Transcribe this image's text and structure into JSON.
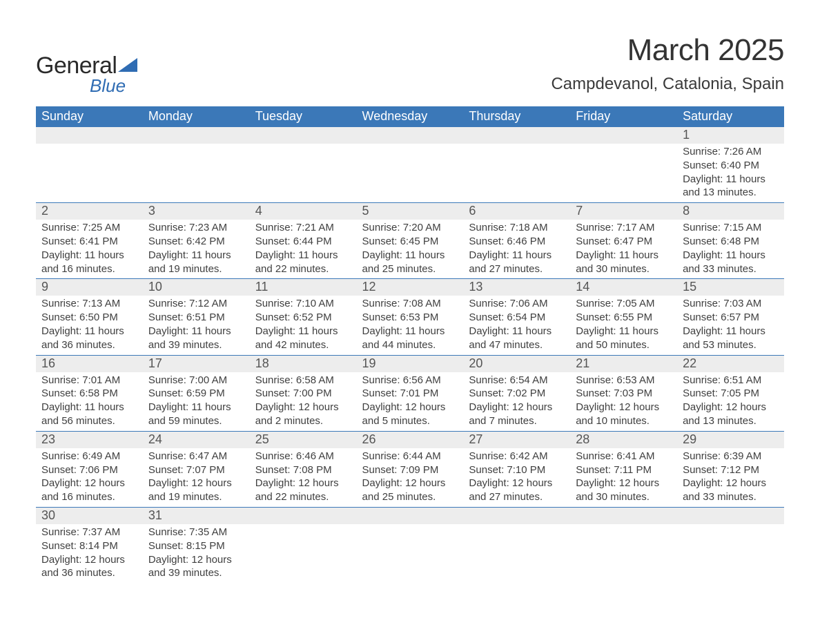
{
  "logo": {
    "general": "General",
    "blue": "Blue",
    "triangle_color": "#2f6cb3"
  },
  "title": "March 2025",
  "location": "Campdevanol, Catalonia, Spain",
  "colors": {
    "header_bg": "#3b78b8",
    "header_text": "#ffffff",
    "daynum_bg": "#ededed",
    "row_border": "#3b78b8",
    "body_text": "#3f3f3f"
  },
  "typography": {
    "title_fontsize": 44,
    "location_fontsize": 24,
    "header_fontsize": 18,
    "daynum_fontsize": 18,
    "body_fontsize": 15
  },
  "day_headers": [
    "Sunday",
    "Monday",
    "Tuesday",
    "Wednesday",
    "Thursday",
    "Friday",
    "Saturday"
  ],
  "weeks": [
    [
      null,
      null,
      null,
      null,
      null,
      null,
      {
        "n": "1",
        "sr": "Sunrise: 7:26 AM",
        "ss": "Sunset: 6:40 PM",
        "d1": "Daylight: 11 hours",
        "d2": "and 13 minutes."
      }
    ],
    [
      {
        "n": "2",
        "sr": "Sunrise: 7:25 AM",
        "ss": "Sunset: 6:41 PM",
        "d1": "Daylight: 11 hours",
        "d2": "and 16 minutes."
      },
      {
        "n": "3",
        "sr": "Sunrise: 7:23 AM",
        "ss": "Sunset: 6:42 PM",
        "d1": "Daylight: 11 hours",
        "d2": "and 19 minutes."
      },
      {
        "n": "4",
        "sr": "Sunrise: 7:21 AM",
        "ss": "Sunset: 6:44 PM",
        "d1": "Daylight: 11 hours",
        "d2": "and 22 minutes."
      },
      {
        "n": "5",
        "sr": "Sunrise: 7:20 AM",
        "ss": "Sunset: 6:45 PM",
        "d1": "Daylight: 11 hours",
        "d2": "and 25 minutes."
      },
      {
        "n": "6",
        "sr": "Sunrise: 7:18 AM",
        "ss": "Sunset: 6:46 PM",
        "d1": "Daylight: 11 hours",
        "d2": "and 27 minutes."
      },
      {
        "n": "7",
        "sr": "Sunrise: 7:17 AM",
        "ss": "Sunset: 6:47 PM",
        "d1": "Daylight: 11 hours",
        "d2": "and 30 minutes."
      },
      {
        "n": "8",
        "sr": "Sunrise: 7:15 AM",
        "ss": "Sunset: 6:48 PM",
        "d1": "Daylight: 11 hours",
        "d2": "and 33 minutes."
      }
    ],
    [
      {
        "n": "9",
        "sr": "Sunrise: 7:13 AM",
        "ss": "Sunset: 6:50 PM",
        "d1": "Daylight: 11 hours",
        "d2": "and 36 minutes."
      },
      {
        "n": "10",
        "sr": "Sunrise: 7:12 AM",
        "ss": "Sunset: 6:51 PM",
        "d1": "Daylight: 11 hours",
        "d2": "and 39 minutes."
      },
      {
        "n": "11",
        "sr": "Sunrise: 7:10 AM",
        "ss": "Sunset: 6:52 PM",
        "d1": "Daylight: 11 hours",
        "d2": "and 42 minutes."
      },
      {
        "n": "12",
        "sr": "Sunrise: 7:08 AM",
        "ss": "Sunset: 6:53 PM",
        "d1": "Daylight: 11 hours",
        "d2": "and 44 minutes."
      },
      {
        "n": "13",
        "sr": "Sunrise: 7:06 AM",
        "ss": "Sunset: 6:54 PM",
        "d1": "Daylight: 11 hours",
        "d2": "and 47 minutes."
      },
      {
        "n": "14",
        "sr": "Sunrise: 7:05 AM",
        "ss": "Sunset: 6:55 PM",
        "d1": "Daylight: 11 hours",
        "d2": "and 50 minutes."
      },
      {
        "n": "15",
        "sr": "Sunrise: 7:03 AM",
        "ss": "Sunset: 6:57 PM",
        "d1": "Daylight: 11 hours",
        "d2": "and 53 minutes."
      }
    ],
    [
      {
        "n": "16",
        "sr": "Sunrise: 7:01 AM",
        "ss": "Sunset: 6:58 PM",
        "d1": "Daylight: 11 hours",
        "d2": "and 56 minutes."
      },
      {
        "n": "17",
        "sr": "Sunrise: 7:00 AM",
        "ss": "Sunset: 6:59 PM",
        "d1": "Daylight: 11 hours",
        "d2": "and 59 minutes."
      },
      {
        "n": "18",
        "sr": "Sunrise: 6:58 AM",
        "ss": "Sunset: 7:00 PM",
        "d1": "Daylight: 12 hours",
        "d2": "and 2 minutes."
      },
      {
        "n": "19",
        "sr": "Sunrise: 6:56 AM",
        "ss": "Sunset: 7:01 PM",
        "d1": "Daylight: 12 hours",
        "d2": "and 5 minutes."
      },
      {
        "n": "20",
        "sr": "Sunrise: 6:54 AM",
        "ss": "Sunset: 7:02 PM",
        "d1": "Daylight: 12 hours",
        "d2": "and 7 minutes."
      },
      {
        "n": "21",
        "sr": "Sunrise: 6:53 AM",
        "ss": "Sunset: 7:03 PM",
        "d1": "Daylight: 12 hours",
        "d2": "and 10 minutes."
      },
      {
        "n": "22",
        "sr": "Sunrise: 6:51 AM",
        "ss": "Sunset: 7:05 PM",
        "d1": "Daylight: 12 hours",
        "d2": "and 13 minutes."
      }
    ],
    [
      {
        "n": "23",
        "sr": "Sunrise: 6:49 AM",
        "ss": "Sunset: 7:06 PM",
        "d1": "Daylight: 12 hours",
        "d2": "and 16 minutes."
      },
      {
        "n": "24",
        "sr": "Sunrise: 6:47 AM",
        "ss": "Sunset: 7:07 PM",
        "d1": "Daylight: 12 hours",
        "d2": "and 19 minutes."
      },
      {
        "n": "25",
        "sr": "Sunrise: 6:46 AM",
        "ss": "Sunset: 7:08 PM",
        "d1": "Daylight: 12 hours",
        "d2": "and 22 minutes."
      },
      {
        "n": "26",
        "sr": "Sunrise: 6:44 AM",
        "ss": "Sunset: 7:09 PM",
        "d1": "Daylight: 12 hours",
        "d2": "and 25 minutes."
      },
      {
        "n": "27",
        "sr": "Sunrise: 6:42 AM",
        "ss": "Sunset: 7:10 PM",
        "d1": "Daylight: 12 hours",
        "d2": "and 27 minutes."
      },
      {
        "n": "28",
        "sr": "Sunrise: 6:41 AM",
        "ss": "Sunset: 7:11 PM",
        "d1": "Daylight: 12 hours",
        "d2": "and 30 minutes."
      },
      {
        "n": "29",
        "sr": "Sunrise: 6:39 AM",
        "ss": "Sunset: 7:12 PM",
        "d1": "Daylight: 12 hours",
        "d2": "and 33 minutes."
      }
    ],
    [
      {
        "n": "30",
        "sr": "Sunrise: 7:37 AM",
        "ss": "Sunset: 8:14 PM",
        "d1": "Daylight: 12 hours",
        "d2": "and 36 minutes."
      },
      {
        "n": "31",
        "sr": "Sunrise: 7:35 AM",
        "ss": "Sunset: 8:15 PM",
        "d1": "Daylight: 12 hours",
        "d2": "and 39 minutes."
      },
      null,
      null,
      null,
      null,
      null
    ]
  ]
}
